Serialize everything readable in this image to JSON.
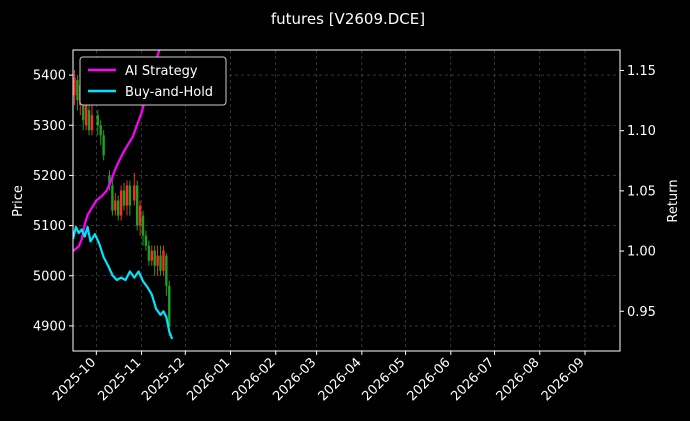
{
  "chart_data": {
    "type": "line",
    "title": "futures [V2609.DCE]",
    "xlabel": "",
    "ylabel": "Price",
    "ylabel_right": "Return",
    "x_ticks": [
      "2025-10",
      "2025-11",
      "2025-12",
      "2026-01",
      "2026-02",
      "2026-03",
      "2026-04",
      "2026-05",
      "2026-06",
      "2026-07",
      "2026-08",
      "2026-09"
    ],
    "y_ticks_left": [
      4900,
      5000,
      5100,
      5200,
      5300,
      5400
    ],
    "y_ticks_right": [
      0.95,
      1.0,
      1.05,
      1.1,
      1.15
    ],
    "xlim": [
      "2025-09-15",
      "2026-09-25"
    ],
    "ylim_left": [
      4850,
      5450
    ],
    "ylim_right": [
      0.917,
      1.167
    ],
    "grid": true,
    "legend_position": "top-left",
    "legend": [
      "AI Strategy",
      "Buy-and-Hold"
    ],
    "colors": {
      "background": "#000000",
      "ai_strategy": "#ff00ff",
      "buy_and_hold": "#00e5ff",
      "candle_up": "#ff2a2a",
      "candle_down": "#1fa21f",
      "grid": "#555555"
    },
    "series": [
      {
        "name": "AI Strategy",
        "axis": "right",
        "x": [
          "2025-09-15",
          "2025-09-17",
          "2025-09-19",
          "2025-09-21",
          "2025-09-23",
          "2025-09-25",
          "2025-09-27",
          "2025-09-29",
          "2025-10-01",
          "2025-10-03",
          "2025-10-05",
          "2025-10-08",
          "2025-10-11",
          "2025-10-14",
          "2025-10-17",
          "2025-10-20",
          "2025-10-23",
          "2025-10-26",
          "2025-10-29",
          "2025-11-01",
          "2025-11-04",
          "2025-11-07",
          "2025-11-10",
          "2025-11-14"
        ],
        "values": [
          1.0,
          1.002,
          1.004,
          1.01,
          1.022,
          1.03,
          1.034,
          1.038,
          1.042,
          1.044,
          1.046,
          1.05,
          1.058,
          1.068,
          1.076,
          1.083,
          1.089,
          1.095,
          1.105,
          1.115,
          1.128,
          1.142,
          1.155,
          1.17
        ]
      },
      {
        "name": "Buy-and-Hold",
        "axis": "right",
        "x": [
          "2025-09-15",
          "2025-09-17",
          "2025-09-19",
          "2025-09-21",
          "2025-09-23",
          "2025-09-25",
          "2025-09-27",
          "2025-09-30",
          "2025-10-03",
          "2025-10-06",
          "2025-10-09",
          "2025-10-12",
          "2025-10-15",
          "2025-10-18",
          "2025-10-21",
          "2025-10-24",
          "2025-10-27",
          "2025-10-30",
          "2025-11-02",
          "2025-11-05",
          "2025-11-08",
          "2025-11-11",
          "2025-11-14",
          "2025-11-16",
          "2025-11-18",
          "2025-11-20",
          "2025-11-22"
        ],
        "values": [
          1.01,
          1.02,
          1.015,
          1.018,
          1.012,
          1.02,
          1.008,
          1.014,
          1.006,
          0.995,
          0.988,
          0.98,
          0.976,
          0.978,
          0.976,
          0.983,
          0.978,
          0.983,
          0.975,
          0.97,
          0.964,
          0.952,
          0.947,
          0.95,
          0.945,
          0.933,
          0.927
        ]
      }
    ],
    "candles": [
      {
        "x": "2025-09-16",
        "open": 5360,
        "close": 5395,
        "high": 5410,
        "low": 5340
      },
      {
        "x": "2025-09-18",
        "open": 5390,
        "close": 5350,
        "high": 5400,
        "low": 5330
      },
      {
        "x": "2025-09-20",
        "open": 5340,
        "close": 5380,
        "high": 5400,
        "low": 5320
      },
      {
        "x": "2025-09-22",
        "open": 5370,
        "close": 5310,
        "high": 5380,
        "low": 5290
      },
      {
        "x": "2025-09-24",
        "open": 5300,
        "close": 5340,
        "high": 5360,
        "low": 5290
      },
      {
        "x": "2025-09-26",
        "open": 5330,
        "close": 5290,
        "high": 5350,
        "low": 5280
      },
      {
        "x": "2025-09-28",
        "open": 5290,
        "close": 5320,
        "high": 5340,
        "low": 5280
      },
      {
        "x": "2025-10-02",
        "open": 5320,
        "close": 5300,
        "high": 5330,
        "low": 5280
      },
      {
        "x": "2025-10-04",
        "open": 5300,
        "close": 5280,
        "high": 5310,
        "low": 5260
      },
      {
        "x": "2025-10-06",
        "open": 5280,
        "close": 5240,
        "high": 5290,
        "low": 5230
      },
      {
        "x": "2025-10-10",
        "open": 5200,
        "close": 5180,
        "high": 5210,
        "low": 5170
      },
      {
        "x": "2025-10-12",
        "open": 5180,
        "close": 5130,
        "high": 5195,
        "low": 5120
      },
      {
        "x": "2025-10-14",
        "open": 5130,
        "close": 5150,
        "high": 5165,
        "low": 5120
      },
      {
        "x": "2025-10-16",
        "open": 5150,
        "close": 5120,
        "high": 5160,
        "low": 5110
      },
      {
        "x": "2025-10-18",
        "open": 5120,
        "close": 5170,
        "high": 5180,
        "low": 5110
      },
      {
        "x": "2025-10-20",
        "open": 5170,
        "close": 5140,
        "high": 5185,
        "low": 5130
      },
      {
        "x": "2025-10-22",
        "open": 5140,
        "close": 5180,
        "high": 5190,
        "low": 5120
      },
      {
        "x": "2025-10-24",
        "open": 5180,
        "close": 5140,
        "high": 5190,
        "low": 5120
      },
      {
        "x": "2025-10-27",
        "open": 5150,
        "close": 5180,
        "high": 5205,
        "low": 5140
      },
      {
        "x": "2025-10-29",
        "open": 5180,
        "close": 5100,
        "high": 5190,
        "low": 5090
      },
      {
        "x": "2025-10-31",
        "open": 5100,
        "close": 5140,
        "high": 5150,
        "low": 5080
      },
      {
        "x": "2025-11-02",
        "open": 5120,
        "close": 5080,
        "high": 5130,
        "low": 5060
      },
      {
        "x": "2025-11-04",
        "open": 5080,
        "close": 5060,
        "high": 5090,
        "low": 5050
      },
      {
        "x": "2025-11-06",
        "open": 5060,
        "close": 5030,
        "high": 5070,
        "low": 5020
      },
      {
        "x": "2025-11-08",
        "open": 5030,
        "close": 5050,
        "high": 5060,
        "low": 5020
      },
      {
        "x": "2025-11-10",
        "open": 5050,
        "close": 5020,
        "high": 5060,
        "low": 5000
      },
      {
        "x": "2025-11-12",
        "open": 5020,
        "close": 5040,
        "high": 5060,
        "low": 5000
      },
      {
        "x": "2025-11-14",
        "open": 5040,
        "close": 5010,
        "high": 5060,
        "low": 5000
      },
      {
        "x": "2025-11-16",
        "open": 5010,
        "close": 5050,
        "high": 5060,
        "low": 5000
      },
      {
        "x": "2025-11-18",
        "open": 5040,
        "close": 4980,
        "high": 5045,
        "low": 4960
      },
      {
        "x": "2025-11-20",
        "open": 4980,
        "close": 4900,
        "high": 4990,
        "low": 4880
      }
    ]
  }
}
